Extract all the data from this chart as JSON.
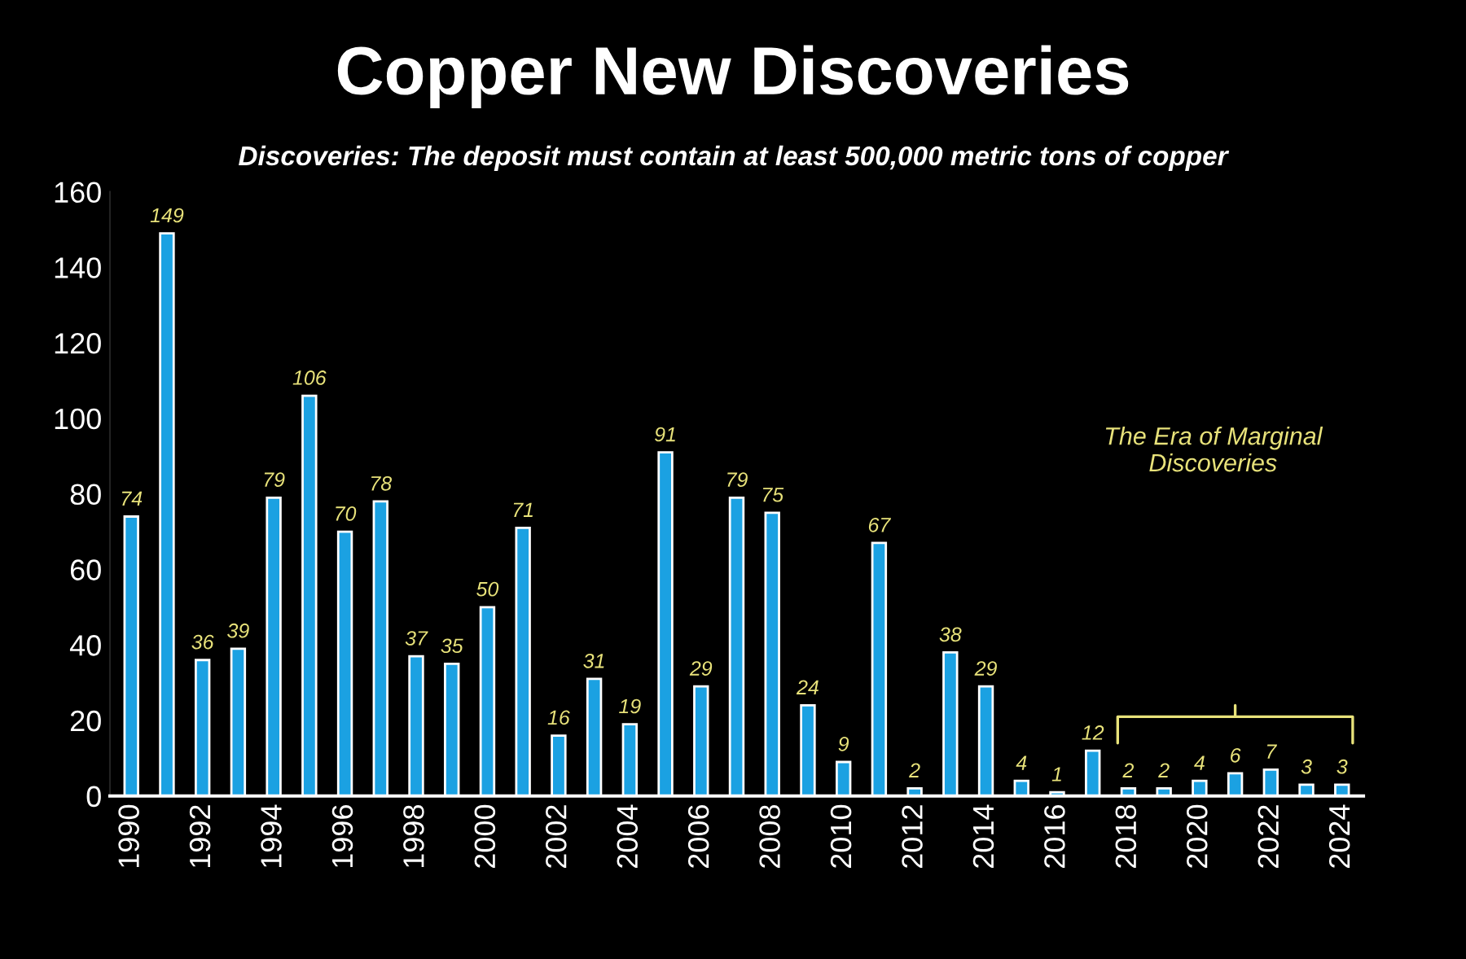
{
  "chart_data": {
    "type": "bar",
    "title": "Copper New Discoveries",
    "subtitle": "Discoveries: The deposit must contain at least 500,000 metric tons of copper",
    "categories": [
      "1990",
      null,
      "1992",
      null,
      "1994",
      null,
      "1996",
      null,
      "1998",
      null,
      "2000",
      null,
      "2002",
      null,
      "2004",
      null,
      "2006",
      null,
      "2008",
      null,
      "2010",
      null,
      "2012",
      null,
      "2014",
      null,
      "2016",
      null,
      "2018",
      null,
      "2020",
      null,
      "2022",
      null,
      "2024"
    ],
    "values": [
      74,
      149,
      36,
      39,
      79,
      106,
      70,
      78,
      37,
      35,
      50,
      71,
      16,
      31,
      19,
      91,
      29,
      79,
      75,
      24,
      9,
      67,
      2,
      38,
      29,
      4,
      1,
      12,
      2,
      2,
      4,
      6,
      7,
      3,
      3
    ],
    "color": "#1ba1e2",
    "data_labels": true,
    "ylim": [
      0,
      160
    ],
    "yticks": [
      0,
      20,
      40,
      60,
      80,
      100,
      120,
      140,
      160
    ],
    "annotations": [
      "The Era of Marginal\nDiscoveries"
    ],
    "grid": false,
    "legend": false
  }
}
